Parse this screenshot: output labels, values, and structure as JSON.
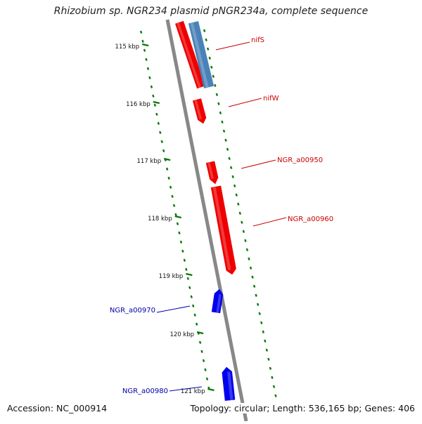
{
  "title": "Rhizobium sp. NGR234 plasmid pNGR234a, complete sequence",
  "accession": "Accession: NC_000914",
  "topology": "Topology: circular; Length: 536,165 bp; Genes: 406",
  "ticks": [
    "115 kbp",
    "116 kbp",
    "117 kbp",
    "118 kbp",
    "119 kbp",
    "120 kbp",
    "121 kbp"
  ],
  "features": [
    {
      "label": "nifS",
      "strand": "forward",
      "color": "#ee0000",
      "track": "outer"
    },
    {
      "label": "nifS",
      "strand": "forward",
      "color": "#4a82b8",
      "track": "outer-2",
      "unlabeled": true
    },
    {
      "label": "nifW",
      "strand": "forward",
      "color": "#ee0000",
      "track": "outer"
    },
    {
      "label": "NGR_a00950",
      "strand": "forward",
      "color": "#ee0000",
      "track": "outer"
    },
    {
      "label": "NGR_a00960",
      "strand": "forward",
      "color": "#ee0000",
      "track": "outer"
    },
    {
      "label": "NGR_a00970",
      "strand": "reverse",
      "color": "#0000ee",
      "track": "outer"
    },
    {
      "label": "NGR_a00980",
      "strand": "reverse",
      "color": "#0000ee",
      "track": "outer"
    }
  ],
  "colors": {
    "backbone": "#888888",
    "ruler_dash": "#0a7a0a",
    "forward_label": "#cc0000",
    "reverse_label": "#0000aa",
    "tick_label": "#111111"
  }
}
